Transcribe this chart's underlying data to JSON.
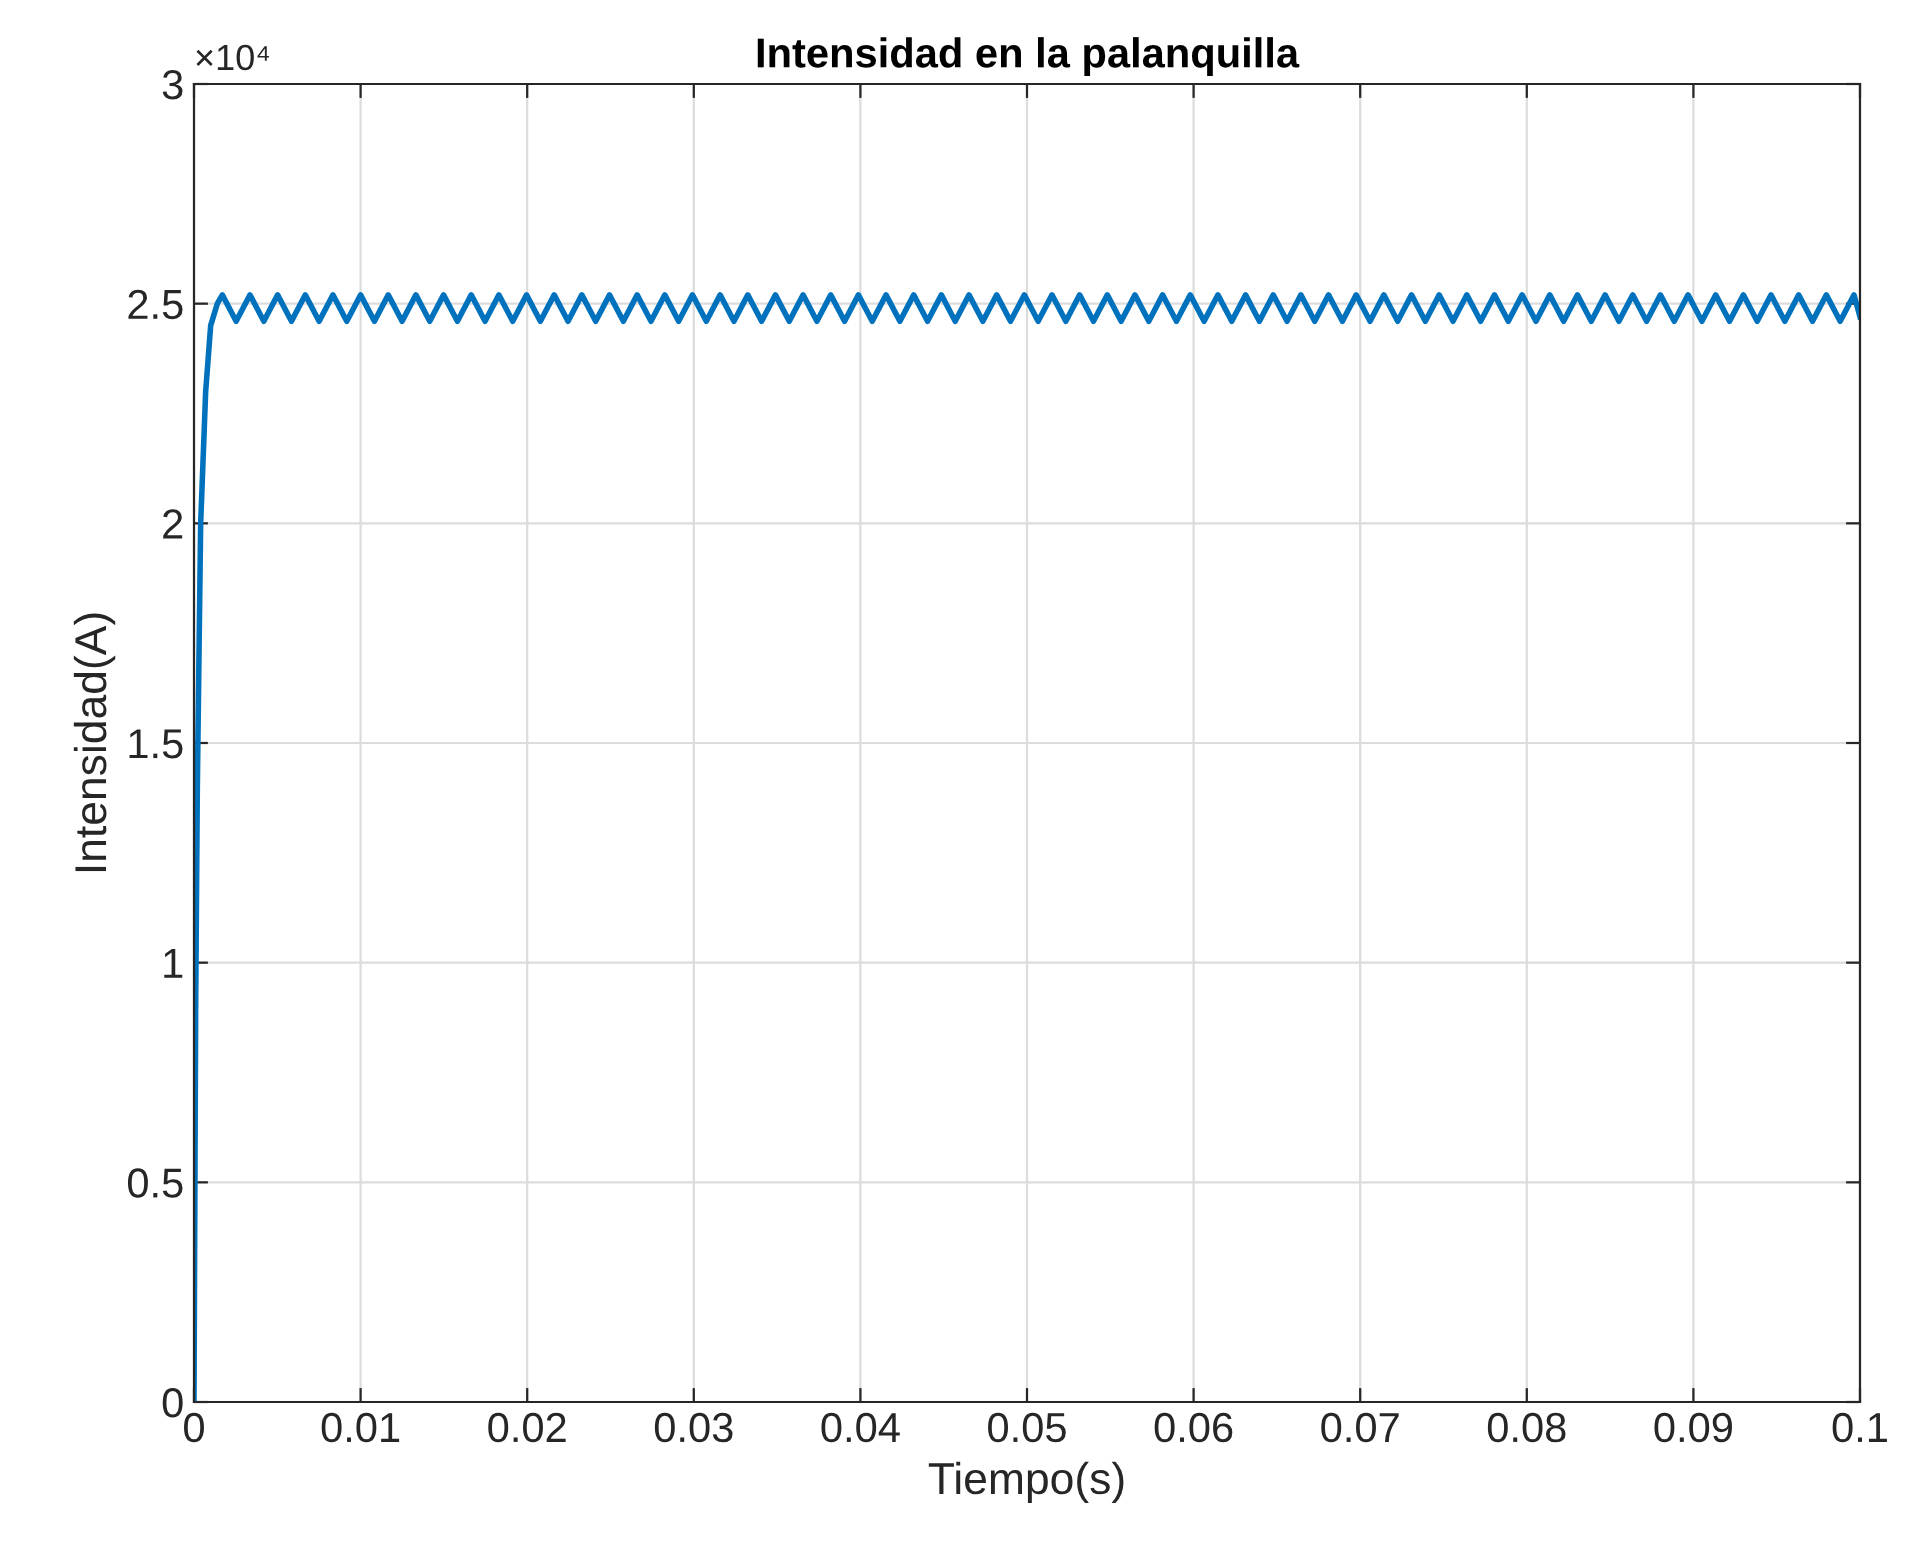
{
  "chart_data": {
    "type": "line",
    "title": "Intensidad en la palanquilla",
    "xlabel": "Tiempo(s)",
    "ylabel": "Intensidad(A)",
    "annotations": [
      "×10⁴"
    ],
    "xlim": [
      0,
      0.1
    ],
    "xticks": [
      0,
      0.01,
      0.02,
      0.03,
      0.04,
      0.05,
      0.06,
      0.07,
      0.08,
      0.09,
      0.1
    ],
    "ylim": [
      0,
      3
    ],
    "yticks": [
      0,
      0.5,
      1,
      1.5,
      2,
      2.5,
      3
    ],
    "grid": true,
    "line_style": "solid",
    "marker": "none",
    "series": [
      {
        "color": "#0072bd",
        "x": [
          0,
          0.0001,
          0.0002,
          0.0004,
          0.0007,
          0.001,
          0.0014,
          0.0017,
          0.00253,
          0.00336,
          0.00419,
          0.00502,
          0.00585,
          0.00668,
          0.00751,
          0.00834,
          0.00917,
          0.01,
          0.01083,
          0.01166,
          0.01249,
          0.01332,
          0.01415,
          0.01498,
          0.01581,
          0.01664,
          0.01747,
          0.0183,
          0.01913,
          0.01996,
          0.02079,
          0.02162,
          0.02245,
          0.02328,
          0.02411,
          0.02494,
          0.02577,
          0.0266,
          0.02743,
          0.02826,
          0.02909,
          0.02992,
          0.03075,
          0.03158,
          0.03241,
          0.03324,
          0.03407,
          0.0349,
          0.03573,
          0.03656,
          0.03739,
          0.03822,
          0.03905,
          0.03988,
          0.04071,
          0.04154,
          0.04237,
          0.0432,
          0.04403,
          0.04486,
          0.04569,
          0.04652,
          0.04735,
          0.04818,
          0.04901,
          0.04984,
          0.05067,
          0.0515,
          0.05233,
          0.05316,
          0.05399,
          0.05482,
          0.05565,
          0.05648,
          0.05731,
          0.05814,
          0.05897,
          0.0598,
          0.06063,
          0.06146,
          0.06229,
          0.06312,
          0.06395,
          0.06478,
          0.06561,
          0.06644,
          0.06727,
          0.0681,
          0.06893,
          0.06976,
          0.07059,
          0.07142,
          0.07225,
          0.07308,
          0.07391,
          0.07474,
          0.07557,
          0.0764,
          0.07723,
          0.07806,
          0.07889,
          0.07972,
          0.08055,
          0.08138,
          0.08221,
          0.08304,
          0.08387,
          0.0847,
          0.08553,
          0.08636,
          0.08719,
          0.08802,
          0.08885,
          0.08968,
          0.09051,
          0.09134,
          0.09217,
          0.093,
          0.09383,
          0.09466,
          0.09549,
          0.09632,
          0.09715,
          0.09798,
          0.09881,
          0.09964,
          0.1
        ],
        "values": [
          0,
          0.9,
          1.4,
          2.0,
          2.3,
          2.45,
          2.5,
          2.52,
          2.46,
          2.52,
          2.46,
          2.52,
          2.46,
          2.52,
          2.46,
          2.52,
          2.46,
          2.52,
          2.46,
          2.52,
          2.46,
          2.52,
          2.46,
          2.52,
          2.46,
          2.52,
          2.46,
          2.52,
          2.46,
          2.52,
          2.46,
          2.52,
          2.46,
          2.52,
          2.46,
          2.52,
          2.46,
          2.52,
          2.46,
          2.52,
          2.46,
          2.52,
          2.46,
          2.52,
          2.46,
          2.52,
          2.46,
          2.52,
          2.46,
          2.52,
          2.46,
          2.52,
          2.46,
          2.52,
          2.46,
          2.52,
          2.46,
          2.52,
          2.46,
          2.52,
          2.46,
          2.52,
          2.46,
          2.52,
          2.46,
          2.52,
          2.46,
          2.52,
          2.46,
          2.52,
          2.46,
          2.52,
          2.46,
          2.52,
          2.46,
          2.52,
          2.46,
          2.52,
          2.46,
          2.52,
          2.46,
          2.52,
          2.46,
          2.52,
          2.46,
          2.52,
          2.46,
          2.52,
          2.46,
          2.52,
          2.46,
          2.52,
          2.46,
          2.52,
          2.46,
          2.52,
          2.46,
          2.52,
          2.46,
          2.52,
          2.46,
          2.52,
          2.46,
          2.52,
          2.46,
          2.52,
          2.46,
          2.52,
          2.46,
          2.52,
          2.46,
          2.52,
          2.46,
          2.52,
          2.46,
          2.52,
          2.46,
          2.52,
          2.46,
          2.52,
          2.46,
          2.52,
          2.46,
          2.52,
          2.46,
          2.52,
          2.47
        ]
      }
    ]
  }
}
